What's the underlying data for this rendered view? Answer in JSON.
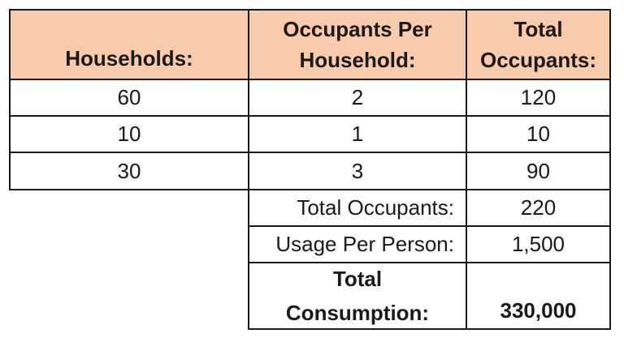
{
  "headers": {
    "households": "Households:",
    "occupants_per_household": [
      "Occupants Per",
      "Household:"
    ],
    "total_occupants": [
      "Total",
      "Occupants:"
    ]
  },
  "rows": [
    {
      "households": "60",
      "occupants_per_household": "2",
      "total_occupants": "120"
    },
    {
      "households": "10",
      "occupants_per_household": "1",
      "total_occupants": "10"
    },
    {
      "households": "30",
      "occupants_per_household": "3",
      "total_occupants": "90"
    }
  ],
  "summary": {
    "total_occupants_label": "Total Occupants:",
    "total_occupants_value": "220",
    "usage_per_person_label": "Usage Per Person:",
    "usage_per_person_value": "1,500",
    "total_consumption_label": [
      "Total",
      "Consumption:"
    ],
    "total_consumption_value": "330,000"
  },
  "colors": {
    "header_fill": "#f8cbad",
    "border": "#1a1a1a"
  }
}
